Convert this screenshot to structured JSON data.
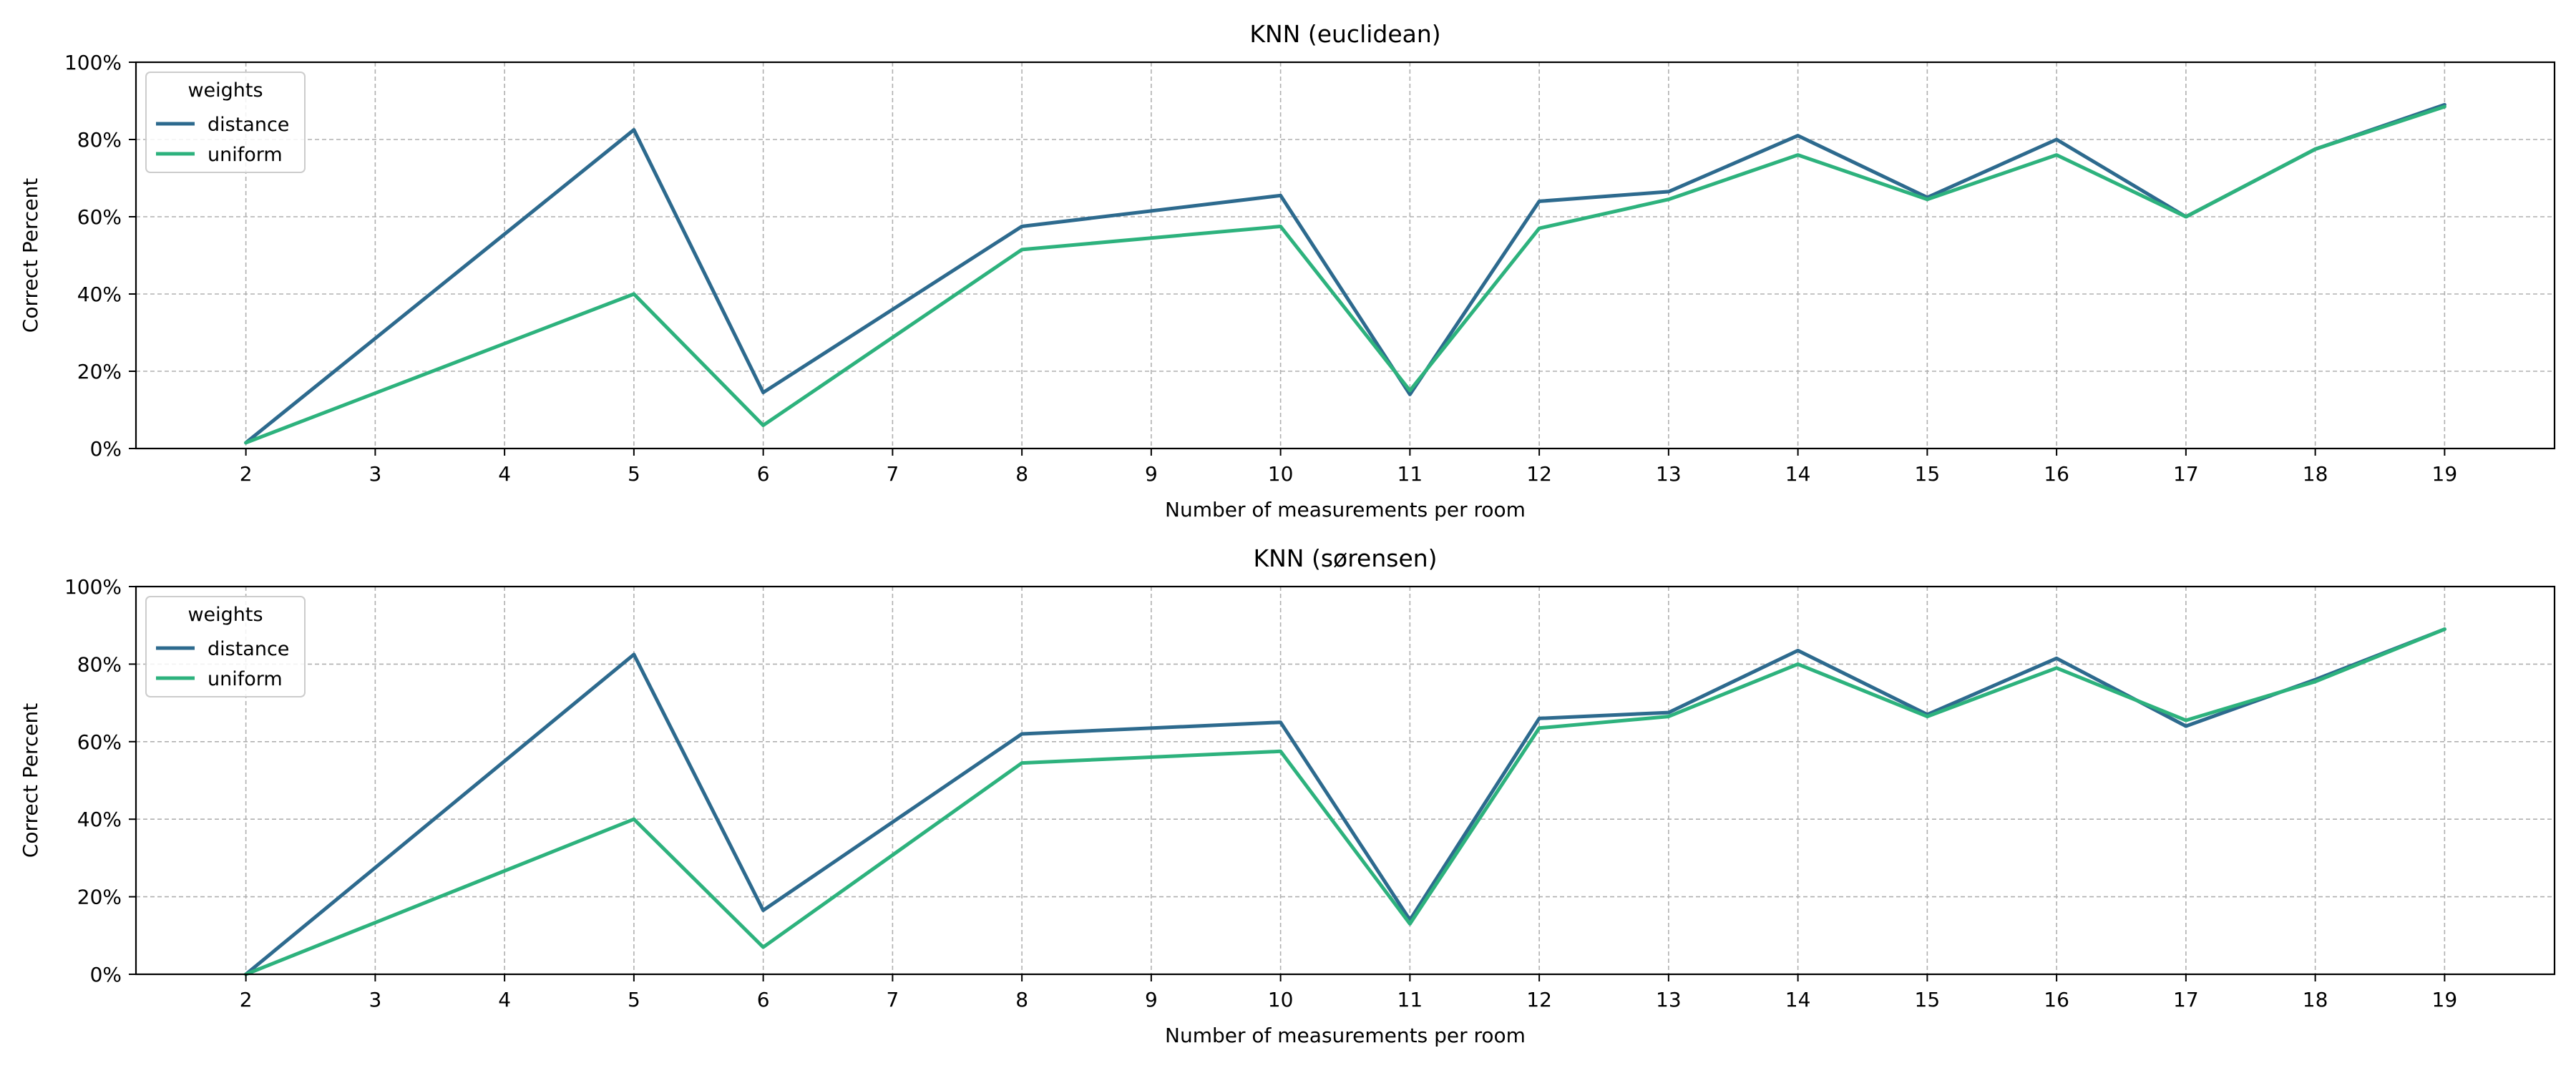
{
  "colors": {
    "distance": "#2d6a8e",
    "uniform": "#2db27d",
    "grid": "#b0b0b0",
    "axis": "#000000"
  },
  "chart_data": [
    {
      "type": "line",
      "title": "KNN (euclidean)",
      "xlabel": "Number of measurements per room",
      "ylabel": "Correct Percent",
      "x": [
        2,
        5,
        6,
        8,
        10,
        11,
        12,
        13,
        14,
        15,
        16,
        17,
        18,
        19
      ],
      "xticks": [
        "2",
        "3",
        "4",
        "5",
        "6",
        "7",
        "8",
        "9",
        "10",
        "11",
        "12",
        "13",
        "14",
        "15",
        "16",
        "17",
        "18",
        "19"
      ],
      "yticks": [
        "0%",
        "20%",
        "40%",
        "60%",
        "80%",
        "100%"
      ],
      "xlim": [
        1.15,
        19.85
      ],
      "ylim": [
        0,
        100
      ],
      "grid": true,
      "legend": {
        "title": "weights",
        "position": "top-left"
      },
      "series": [
        {
          "name": "distance",
          "values": [
            1.5,
            82.5,
            14.5,
            57.5,
            65.5,
            14.0,
            64.0,
            66.5,
            81.0,
            65.0,
            80.0,
            60.0,
            77.5,
            89.0
          ]
        },
        {
          "name": "uniform",
          "values": [
            1.5,
            40.0,
            6.0,
            51.5,
            57.5,
            15.0,
            57.0,
            64.5,
            76.0,
            64.5,
            76.0,
            60.0,
            77.5,
            88.5
          ]
        }
      ]
    },
    {
      "type": "line",
      "title": "KNN (sørensen)",
      "xlabel": "Number of measurements per room",
      "ylabel": "Correct Percent",
      "x": [
        2,
        5,
        6,
        8,
        10,
        11,
        12,
        13,
        14,
        15,
        16,
        17,
        18,
        19
      ],
      "xticks": [
        "2",
        "3",
        "4",
        "5",
        "6",
        "7",
        "8",
        "9",
        "10",
        "11",
        "12",
        "13",
        "14",
        "15",
        "16",
        "17",
        "18",
        "19"
      ],
      "yticks": [
        "0%",
        "20%",
        "40%",
        "60%",
        "80%",
        "100%"
      ],
      "xlim": [
        1.15,
        19.85
      ],
      "ylim": [
        0,
        100
      ],
      "grid": true,
      "legend": {
        "title": "weights",
        "position": "top-left"
      },
      "series": [
        {
          "name": "distance",
          "values": [
            0.0,
            82.5,
            16.5,
            62.0,
            65.0,
            14.0,
            66.0,
            67.5,
            83.5,
            67.0,
            81.5,
            64.0,
            76.0,
            89.0
          ]
        },
        {
          "name": "uniform",
          "values": [
            0.0,
            40.0,
            7.0,
            54.5,
            57.5,
            13.0,
            63.5,
            66.5,
            80.0,
            66.5,
            79.0,
            65.5,
            75.5,
            89.0
          ]
        }
      ]
    }
  ]
}
